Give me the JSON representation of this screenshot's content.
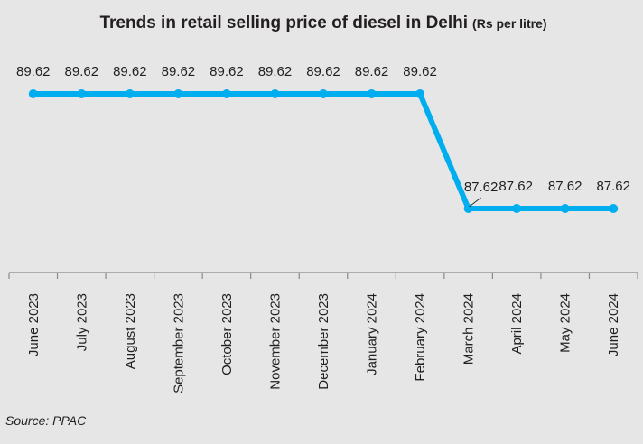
{
  "chart_data": {
    "type": "line",
    "title": "Trends in retail selling price of diesel in Delhi",
    "title_unit": "(Rs per litre)",
    "xlabel": "",
    "ylabel": "",
    "categories": [
      "June 2023",
      "July 2023",
      "August 2023",
      "September 2023",
      "October 2023",
      "November 2023",
      "December 2023",
      "January 2024",
      "February 2024",
      "March 2024",
      "April 2024",
      "May 2024",
      "June 2024"
    ],
    "series": [
      {
        "name": "Diesel price (Rs per litre)",
        "values": [
          89.62,
          89.62,
          89.62,
          89.62,
          89.62,
          89.62,
          89.62,
          89.62,
          89.62,
          87.62,
          87.62,
          87.62,
          87.62
        ],
        "labels": [
          "89.62",
          "89.62",
          "89.62",
          "89.62",
          "89.62",
          "89.62",
          "89.62",
          "89.62",
          "89.62",
          "87.62",
          "87.62",
          "87.62",
          "87.62"
        ],
        "color": "#00aeef"
      }
    ],
    "ylim": [
      86.62,
      90.22
    ],
    "grid": false,
    "legend": "none",
    "source": "Source: PPAC"
  }
}
